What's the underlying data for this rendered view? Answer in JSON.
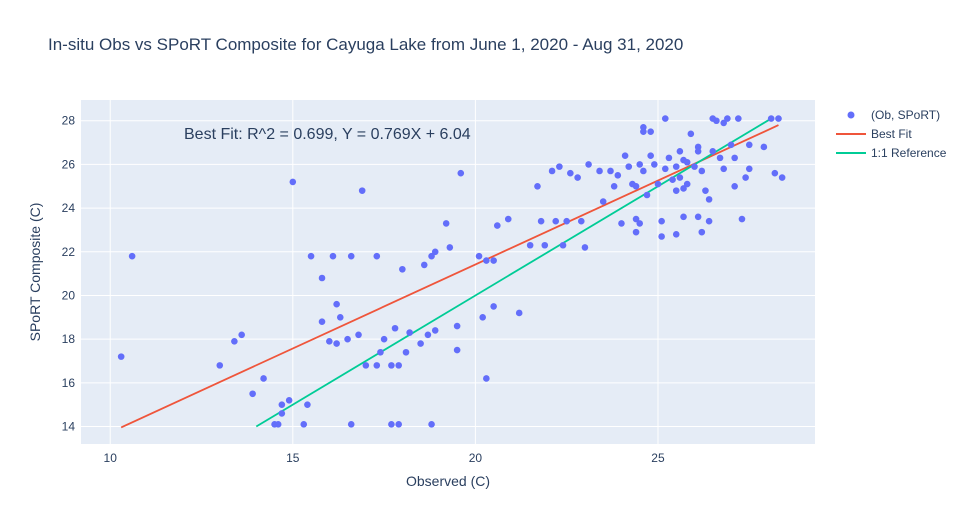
{
  "chart_data": {
    "type": "scatter",
    "title": "In-situ Obs vs SPoRT Composite for Cayuga Lake from June 1, 2020 - Aug 31, 2020",
    "xlabel": "Observed (C)",
    "ylabel": "SPoRT Composite (C)",
    "xlim": [
      9.2,
      29.3
    ],
    "ylim": [
      13.2,
      28.95
    ],
    "xticks": [
      10,
      15,
      20,
      25
    ],
    "yticks": [
      14,
      16,
      18,
      20,
      22,
      24,
      26,
      28
    ],
    "grid": true,
    "legend_position": "top-right",
    "annotation": "Best Fit: R^2 = 0.699, Y = 0.769X + 6.04",
    "colors": {
      "background": "#e5ecf6",
      "grid": "#ffffff",
      "points": "#636efa",
      "best_fit": "#ef553b",
      "reference": "#00cc96",
      "text": "#2a3f5f"
    },
    "series": [
      {
        "name": "(Ob, SPoRT)",
        "mode": "markers",
        "points": [
          [
            10.3,
            17.2
          ],
          [
            10.6,
            21.8
          ],
          [
            13.0,
            16.8
          ],
          [
            13.4,
            17.9
          ],
          [
            13.6,
            18.2
          ],
          [
            13.9,
            15.5
          ],
          [
            14.2,
            16.2
          ],
          [
            14.5,
            14.1
          ],
          [
            14.6,
            14.1
          ],
          [
            14.7,
            15.0
          ],
          [
            14.7,
            14.6
          ],
          [
            14.9,
            15.2
          ],
          [
            15.0,
            25.2
          ],
          [
            15.3,
            14.1
          ],
          [
            15.4,
            15.0
          ],
          [
            15.5,
            21.8
          ],
          [
            15.8,
            18.8
          ],
          [
            15.8,
            20.8
          ],
          [
            16.0,
            17.9
          ],
          [
            16.1,
            21.8
          ],
          [
            16.2,
            19.6
          ],
          [
            16.2,
            17.8
          ],
          [
            16.3,
            19.0
          ],
          [
            16.5,
            18.0
          ],
          [
            16.6,
            14.1
          ],
          [
            16.6,
            21.8
          ],
          [
            16.8,
            18.2
          ],
          [
            16.9,
            24.8
          ],
          [
            17.0,
            16.8
          ],
          [
            17.3,
            21.8
          ],
          [
            17.3,
            16.8
          ],
          [
            17.4,
            17.4
          ],
          [
            17.5,
            18.0
          ],
          [
            17.7,
            16.8
          ],
          [
            17.7,
            14.1
          ],
          [
            17.8,
            18.5
          ],
          [
            17.9,
            16.8
          ],
          [
            17.9,
            14.1
          ],
          [
            18.0,
            21.2
          ],
          [
            18.1,
            17.4
          ],
          [
            18.2,
            18.3
          ],
          [
            18.5,
            17.8
          ],
          [
            18.6,
            21.4
          ],
          [
            18.7,
            18.2
          ],
          [
            18.8,
            21.8
          ],
          [
            18.8,
            14.1
          ],
          [
            18.9,
            18.4
          ],
          [
            18.9,
            22.0
          ],
          [
            19.2,
            23.3
          ],
          [
            19.3,
            22.2
          ],
          [
            19.5,
            18.6
          ],
          [
            19.5,
            17.5
          ],
          [
            19.6,
            25.6
          ],
          [
            20.1,
            21.8
          ],
          [
            20.2,
            19.0
          ],
          [
            20.3,
            21.6
          ],
          [
            20.3,
            16.2
          ],
          [
            20.5,
            21.6
          ],
          [
            20.5,
            19.5
          ],
          [
            20.6,
            23.2
          ],
          [
            20.9,
            23.5
          ],
          [
            21.2,
            19.2
          ],
          [
            21.5,
            22.3
          ],
          [
            21.7,
            25.0
          ],
          [
            21.8,
            23.4
          ],
          [
            21.9,
            22.3
          ],
          [
            22.1,
            25.7
          ],
          [
            22.2,
            23.4
          ],
          [
            22.3,
            25.9
          ],
          [
            22.4,
            22.3
          ],
          [
            22.5,
            23.4
          ],
          [
            22.6,
            25.6
          ],
          [
            22.8,
            25.4
          ],
          [
            22.9,
            23.4
          ],
          [
            23.0,
            22.2
          ],
          [
            23.1,
            26.0
          ],
          [
            23.4,
            25.7
          ],
          [
            23.5,
            24.3
          ],
          [
            23.7,
            25.7
          ],
          [
            23.8,
            25.0
          ],
          [
            23.9,
            25.5
          ],
          [
            24.0,
            23.3
          ],
          [
            24.1,
            26.4
          ],
          [
            24.2,
            25.9
          ],
          [
            24.3,
            25.1
          ],
          [
            24.4,
            25.0
          ],
          [
            24.4,
            23.5
          ],
          [
            24.4,
            22.9
          ],
          [
            24.5,
            26.0
          ],
          [
            24.5,
            23.3
          ],
          [
            24.6,
            27.5
          ],
          [
            24.6,
            27.7
          ],
          [
            24.6,
            25.7
          ],
          [
            24.7,
            24.6
          ],
          [
            24.8,
            26.4
          ],
          [
            24.8,
            27.5
          ],
          [
            24.9,
            26.0
          ],
          [
            25.0,
            25.1
          ],
          [
            25.1,
            23.4
          ],
          [
            25.1,
            22.7
          ],
          [
            25.2,
            25.8
          ],
          [
            25.2,
            28.1
          ],
          [
            25.3,
            26.3
          ],
          [
            25.4,
            25.3
          ],
          [
            25.5,
            22.8
          ],
          [
            25.5,
            24.8
          ],
          [
            25.5,
            25.9
          ],
          [
            25.6,
            26.6
          ],
          [
            25.6,
            25.4
          ],
          [
            25.7,
            26.2
          ],
          [
            25.7,
            24.9
          ],
          [
            25.7,
            23.6
          ],
          [
            25.8,
            26.1
          ],
          [
            25.8,
            25.1
          ],
          [
            25.9,
            27.4
          ],
          [
            26.0,
            25.9
          ],
          [
            26.1,
            26.8
          ],
          [
            26.1,
            26.6
          ],
          [
            26.1,
            23.6
          ],
          [
            26.2,
            25.7
          ],
          [
            26.2,
            22.9
          ],
          [
            26.3,
            24.8
          ],
          [
            26.4,
            24.4
          ],
          [
            26.4,
            23.4
          ],
          [
            26.5,
            28.1
          ],
          [
            26.5,
            26.6
          ],
          [
            26.6,
            28.0
          ],
          [
            26.7,
            26.3
          ],
          [
            26.8,
            27.9
          ],
          [
            26.8,
            25.8
          ],
          [
            26.9,
            28.1
          ],
          [
            27.0,
            26.9
          ],
          [
            27.1,
            26.3
          ],
          [
            27.1,
            25.0
          ],
          [
            27.2,
            28.1
          ],
          [
            27.3,
            23.5
          ],
          [
            27.4,
            25.4
          ],
          [
            27.5,
            26.9
          ],
          [
            27.5,
            25.8
          ],
          [
            27.9,
            26.8
          ],
          [
            28.1,
            28.1
          ],
          [
            28.2,
            25.6
          ],
          [
            28.3,
            28.1
          ],
          [
            28.4,
            25.4
          ]
        ]
      },
      {
        "name": "Best Fit",
        "mode": "line",
        "x": [
          10.3,
          28.3
        ],
        "y": [
          13.96,
          27.8
        ]
      },
      {
        "name": "1:1 Reference",
        "mode": "line",
        "x": [
          14.0,
          28.1
        ],
        "y": [
          14.0,
          28.1
        ]
      }
    ]
  }
}
